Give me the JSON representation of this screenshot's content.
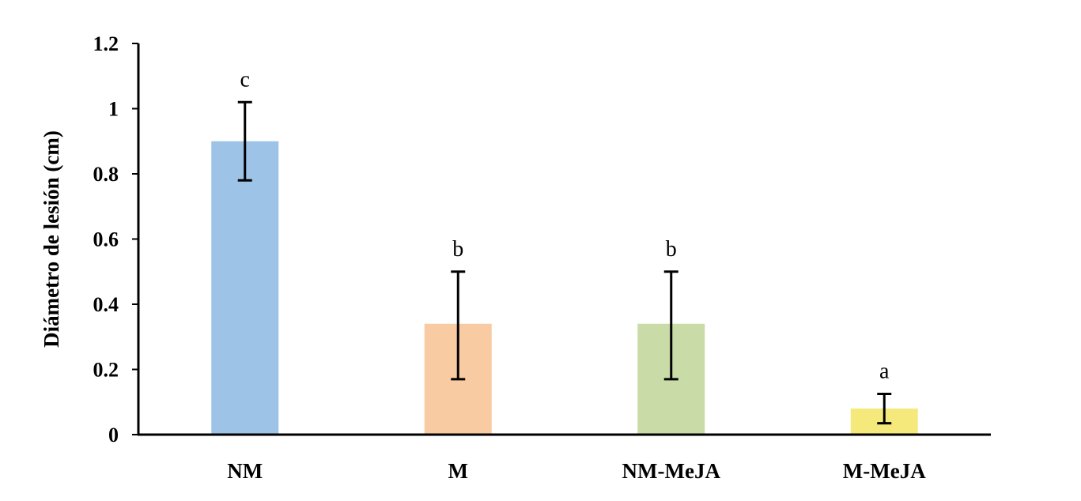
{
  "chart_data": {
    "type": "bar",
    "title": "",
    "xlabel": "",
    "ylabel": "Diámetro de lesión  (cm)",
    "ylim": [
      0,
      1.2
    ],
    "yticks": [
      "0",
      "0.2",
      "0.4",
      "0.6",
      "0.8",
      "1",
      "1.2"
    ],
    "categories": [
      "NM",
      "M",
      "NM-MeJA",
      "M-MeJA"
    ],
    "values": [
      0.9,
      0.34,
      0.34,
      0.08
    ],
    "error_low": [
      0.78,
      0.17,
      0.17,
      0.035
    ],
    "error_high": [
      1.02,
      0.5,
      0.5,
      0.125
    ],
    "significance_labels": [
      "c",
      "b",
      "b",
      "a"
    ],
    "bar_colors": [
      "#9dc3e6",
      "#f8cba2",
      "#c9dca8",
      "#f5e97c"
    ],
    "grid": false,
    "legend": "none"
  }
}
